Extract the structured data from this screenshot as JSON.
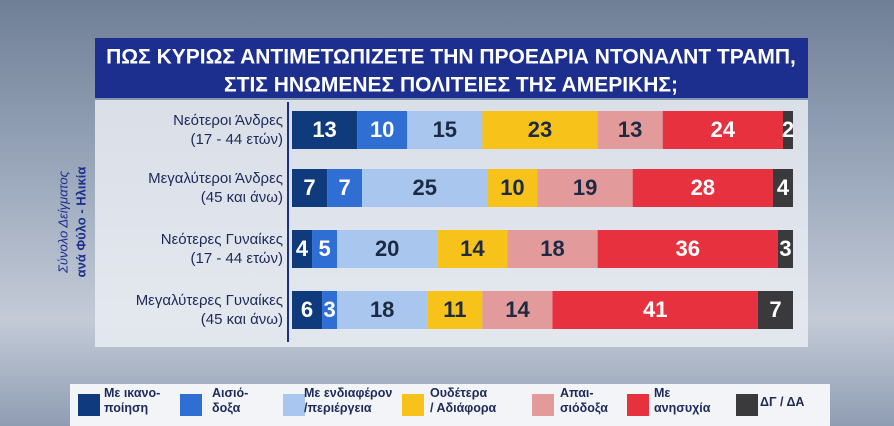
{
  "chart_data": {
    "type": "stacked-bar-horizontal",
    "title": [
      "ΠΩΣ ΚΥΡΙΩΣ ΑΝΤΙΜΕΤΩΠΙΖΕΤΕ ΤΗΝ ΠΡΟΕΔΡΙΑ ΝΤΟΝΑΛΝΤ ΤΡΑΜΠ,",
      "ΣΤΙΣ ΗΝΩΜΕΝΕΣ ΠΟΛΙΤΕΙΕΣ ΤΗΣ ΑΜΕΡΙΚΗΣ;"
    ],
    "side_label": [
      "Σύνολο Δείγματος",
      "ανά Φύλο - Ηλικία"
    ],
    "categories": [
      "Νεότεροι Άνδρες",
      "Μεγαλύτεροι Άνδρες",
      "Νεότερες Γυναίκες",
      "Μεγαλύτερες Γυναίκες"
    ],
    "category_notes": [
      "(17 - 44 ετών)",
      "(45 και άνω)",
      "(17 - 44 ετών)",
      "(45 και άνω)"
    ],
    "xlim": [
      0,
      100
    ],
    "series": [
      {
        "name": "Με ικανο-\nποίηση",
        "color": "#0f3b7c",
        "text_color": "#ffffff",
        "values": [
          13,
          7,
          4,
          6
        ]
      },
      {
        "name": "Αισιό-\nδοξα",
        "color": "#2f6fd4",
        "text_color": "#ffffff",
        "values": [
          10,
          7,
          5,
          3
        ]
      },
      {
        "name": "Με ενδιαφέρον\n/περιέργεια",
        "color": "#a8c6ee",
        "text_color": "#1d2a44",
        "values": [
          15,
          25,
          20,
          18
        ]
      },
      {
        "name": "Ουδέτερα\n/ Αδιάφορα",
        "color": "#f7c31b",
        "text_color": "#1d2a44",
        "values": [
          23,
          10,
          14,
          11
        ]
      },
      {
        "name": "Απαι-\nσιόδοξα",
        "color": "#e39a9b",
        "text_color": "#1d2a44",
        "values": [
          13,
          19,
          18,
          14
        ]
      },
      {
        "name": "Με\nανησυχία",
        "color": "#e8313e",
        "text_color": "#ffffff",
        "values": [
          24,
          28,
          36,
          41
        ]
      },
      {
        "name": "ΔΓ / ΔΑ",
        "color": "#3a3a3c",
        "text_color": "#ffffff",
        "values": [
          2,
          4,
          3,
          7
        ]
      }
    ]
  }
}
